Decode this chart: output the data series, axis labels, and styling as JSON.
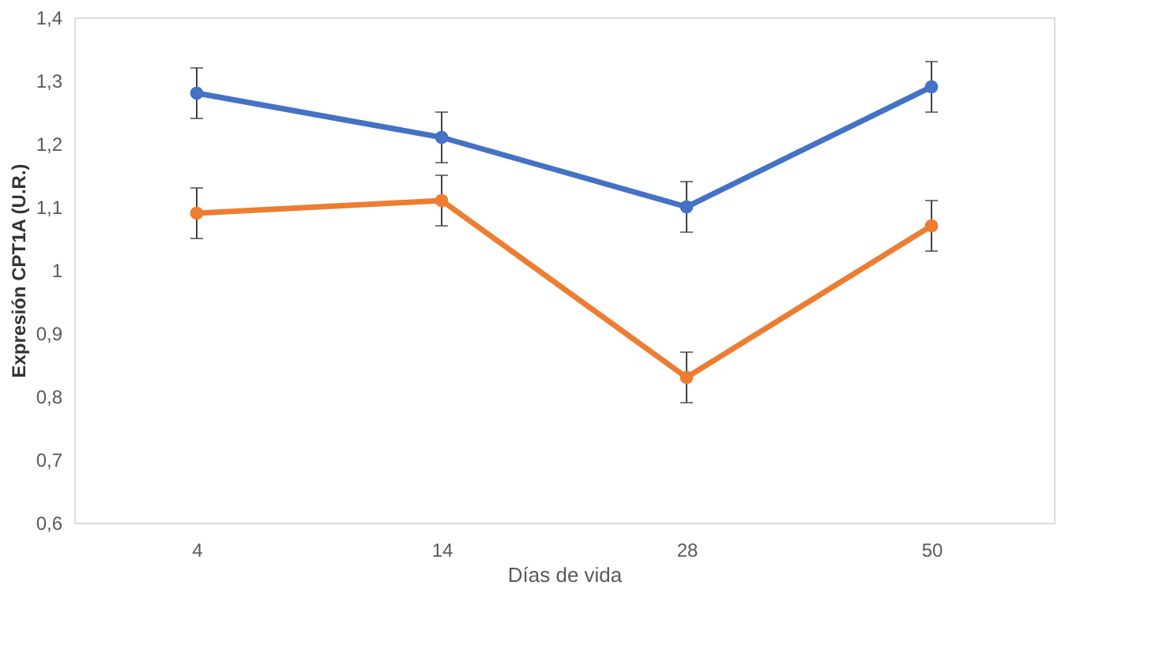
{
  "chart_data": {
    "type": "line",
    "xlabel": "Días de vida",
    "ylabel": "Expresión CPT1A (U.R.)",
    "categories": [
      "4",
      "14",
      "28",
      "50"
    ],
    "series": [
      {
        "color": "#4472c4",
        "values": [
          1.28,
          1.21,
          1.1,
          1.29
        ],
        "errors": [
          0.04,
          0.04,
          0.04,
          0.04
        ]
      },
      {
        "color": "#ed7d31",
        "values": [
          1.09,
          1.11,
          0.83,
          1.07
        ],
        "errors": [
          0.04,
          0.04,
          0.04,
          0.04
        ]
      }
    ],
    "ylim": [
      0.6,
      1.4
    ],
    "yticks": [
      {
        "value": 0.6,
        "label": "0,6"
      },
      {
        "value": 0.7,
        "label": "0,7"
      },
      {
        "value": 0.8,
        "label": "0,8"
      },
      {
        "value": 0.9,
        "label": "0,9"
      },
      1,
      {
        "value": 1.1,
        "label": "1,1"
      },
      {
        "value": 1.2,
        "label": "1,2"
      },
      {
        "value": 1.3,
        "label": "1,3"
      },
      {
        "value": 1.4,
        "label": "1,4"
      }
    ],
    "grid": false,
    "legend": false,
    "marker": "circle",
    "line_style": "solid"
  }
}
